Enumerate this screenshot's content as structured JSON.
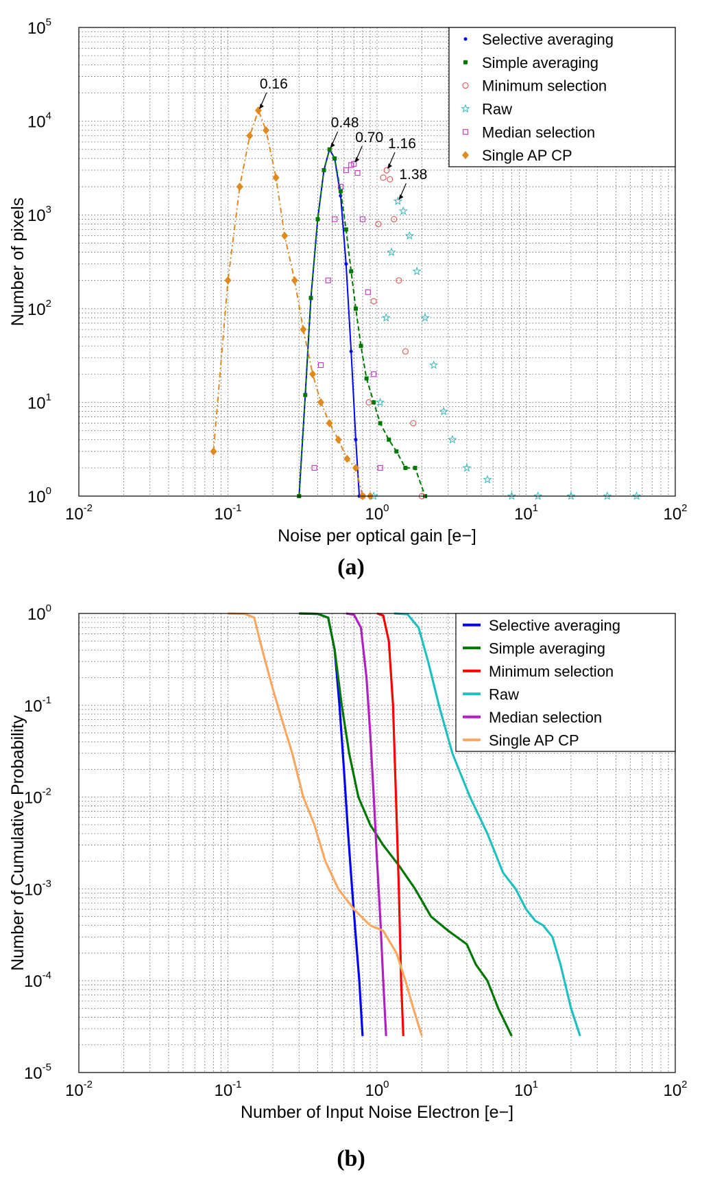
{
  "panel_labels": {
    "a": "(a)",
    "b": "(b)"
  },
  "chart_data": [
    {
      "type": "line",
      "panel": "(a)",
      "xlabel": "Noise per optical gain [e−]",
      "ylabel": "Number of pixels",
      "xscale": "log",
      "yscale": "log",
      "xlim": [
        0.01,
        100
      ],
      "ylim": [
        1,
        100000
      ],
      "grid": true,
      "legend_position": "top-right",
      "x_ticks": [
        {
          "base": "10",
          "exp": "-2"
        },
        {
          "base": "10",
          "exp": "-1"
        },
        {
          "base": "10",
          "exp": "0"
        },
        {
          "base": "10",
          "exp": "1"
        },
        {
          "base": "10",
          "exp": "2"
        }
      ],
      "y_ticks": [
        {
          "base": "10",
          "exp": "0"
        },
        {
          "base": "10",
          "exp": "1"
        },
        {
          "base": "10",
          "exp": "2"
        },
        {
          "base": "10",
          "exp": "3"
        },
        {
          "base": "10",
          "exp": "4"
        },
        {
          "base": "10",
          "exp": "5"
        }
      ],
      "series": [
        {
          "name": "Selective averaging",
          "color": "#0000ff",
          "marker": "dot",
          "line": "solid",
          "x": [
            0.3,
            0.33,
            0.36,
            0.4,
            0.44,
            0.48,
            0.52,
            0.57,
            0.62,
            0.67,
            0.72,
            0.76
          ],
          "y": [
            1,
            12,
            130,
            900,
            3000,
            5000,
            4000,
            1600,
            300,
            35,
            4,
            1
          ]
        },
        {
          "name": "Simple averaging",
          "color": "#007700",
          "marker": "square",
          "line": "dashed",
          "x": [
            0.3,
            0.33,
            0.36,
            0.4,
            0.44,
            0.48,
            0.52,
            0.57,
            0.62,
            0.67,
            0.72,
            0.78,
            0.85,
            0.95,
            1.05,
            1.2,
            1.35,
            1.55,
            1.8,
            2.1
          ],
          "y": [
            1,
            12,
            130,
            900,
            3000,
            5000,
            4000,
            1800,
            700,
            250,
            100,
            40,
            18,
            10,
            6,
            4,
            3,
            2,
            2,
            1
          ]
        },
        {
          "name": "Minimum selection",
          "color": "#e06060",
          "marker": "circle",
          "line": "none",
          "x": [
            0.8,
            0.88,
            0.95,
            1.02,
            1.1,
            1.16,
            1.22,
            1.3,
            1.4,
            1.55,
            1.75,
            2.0
          ],
          "y": [
            1,
            10,
            120,
            800,
            2500,
            3000,
            2400,
            900,
            200,
            35,
            6,
            1
          ]
        },
        {
          "name": "Raw",
          "color": "#30b8b8",
          "marker": "star",
          "line": "none",
          "x": [
            0.95,
            1.05,
            1.15,
            1.25,
            1.38,
            1.5,
            1.65,
            1.85,
            2.1,
            2.4,
            2.8,
            3.2,
            4.0,
            5.5,
            8.0,
            12.0,
            20.0,
            35.0,
            55.0
          ],
          "y": [
            1,
            10,
            80,
            400,
            1400,
            1100,
            600,
            250,
            80,
            25,
            8,
            4,
            2,
            1.5,
            1,
            1,
            1,
            1,
            1
          ]
        },
        {
          "name": "Median selection",
          "color": "#c040c0",
          "marker": "square-open",
          "line": "none",
          "x": [
            0.38,
            0.42,
            0.47,
            0.52,
            0.57,
            0.62,
            0.67,
            0.7,
            0.74,
            0.8,
            0.87,
            0.95,
            1.05
          ],
          "y": [
            2,
            25,
            200,
            900,
            2000,
            3000,
            3400,
            3500,
            2800,
            900,
            150,
            20,
            2
          ]
        },
        {
          "name": "Single AP CP",
          "color": "#e08a1e",
          "marker": "diamond",
          "line": "dashdot",
          "x": [
            0.08,
            0.1,
            0.12,
            0.14,
            0.16,
            0.18,
            0.21,
            0.24,
            0.28,
            0.32,
            0.37,
            0.42,
            0.48,
            0.55,
            0.63,
            0.72,
            0.8,
            0.9
          ],
          "y": [
            3,
            200,
            2000,
            7000,
            13000,
            8000,
            2500,
            600,
            200,
            60,
            20,
            10,
            6,
            4,
            2.5,
            2,
            1,
            1
          ]
        }
      ],
      "annotations": [
        {
          "text": "0.16",
          "x": 0.16,
          "y": 13000
        },
        {
          "text": "0.48",
          "x": 0.48,
          "y": 5000
        },
        {
          "text": "0.70",
          "x": 0.7,
          "y": 3500
        },
        {
          "text": "1.16",
          "x": 1.16,
          "y": 3000
        },
        {
          "text": "1.38",
          "x": 1.38,
          "y": 1400
        }
      ]
    },
    {
      "type": "line",
      "panel": "(b)",
      "xlabel": "Number of Input Noise Electron [e−]",
      "ylabel": "Number of Cumulative Probability",
      "xscale": "log",
      "yscale": "log",
      "xlim": [
        0.01,
        100
      ],
      "ylim": [
        1e-05,
        1
      ],
      "grid": true,
      "legend_position": "top-right",
      "x_ticks": [
        {
          "base": "10",
          "exp": "-2"
        },
        {
          "base": "10",
          "exp": "-1"
        },
        {
          "base": "10",
          "exp": "0"
        },
        {
          "base": "10",
          "exp": "1"
        },
        {
          "base": "10",
          "exp": "2"
        }
      ],
      "y_ticks": [
        {
          "base": "10",
          "exp": "-5"
        },
        {
          "base": "10",
          "exp": "-4"
        },
        {
          "base": "10",
          "exp": "-3"
        },
        {
          "base": "10",
          "exp": "-2"
        },
        {
          "base": "10",
          "exp": "-1"
        },
        {
          "base": "10",
          "exp": "0"
        }
      ],
      "series": [
        {
          "name": "Selective averaging",
          "color": "#0000ff",
          "x": [
            0.3,
            0.4,
            0.47,
            0.52,
            0.56,
            0.6,
            0.64,
            0.68,
            0.72,
            0.76,
            0.8
          ],
          "y": [
            1,
            0.99,
            0.9,
            0.4,
            0.1,
            0.02,
            0.004,
            0.001,
            0.0003,
            0.0001,
            2.5e-05
          ]
        },
        {
          "name": "Simple averaging",
          "color": "#007700",
          "x": [
            0.3,
            0.4,
            0.47,
            0.52,
            0.58,
            0.65,
            0.75,
            0.9,
            1.1,
            1.4,
            1.8,
            2.3,
            3.0,
            4.0,
            4.6,
            5.5,
            6.5,
            8.0
          ],
          "y": [
            1,
            0.99,
            0.9,
            0.4,
            0.1,
            0.03,
            0.01,
            0.005,
            0.003,
            0.0018,
            0.001,
            0.0005,
            0.00035,
            0.00025,
            0.00015,
            0.0001,
            5e-05,
            2.5e-05
          ]
        },
        {
          "name": "Minimum selection",
          "color": "#ff0000",
          "x": [
            1.0,
            1.1,
            1.2,
            1.28,
            1.34,
            1.4,
            1.45,
            1.5
          ],
          "y": [
            1,
            0.95,
            0.5,
            0.1,
            0.01,
            0.001,
            0.0001,
            2.5e-05
          ]
        },
        {
          "name": "Raw",
          "color": "#20c0c0",
          "x": [
            1.3,
            1.6,
            1.9,
            2.2,
            2.6,
            3.2,
            4.2,
            5.5,
            7.0,
            8.5,
            10.0,
            11.5,
            13.0,
            15.0,
            17.0,
            20.0,
            23.0
          ],
          "y": [
            1,
            0.98,
            0.7,
            0.3,
            0.1,
            0.03,
            0.01,
            0.004,
            0.0015,
            0.001,
            0.0006,
            0.00045,
            0.0004,
            0.0003,
            0.00015,
            5e-05,
            2.5e-05
          ]
        },
        {
          "name": "Median selection",
          "color": "#b020c0",
          "x": [
            0.62,
            0.7,
            0.78,
            0.85,
            0.9,
            0.95,
            1.0,
            1.05,
            1.1,
            1.15
          ],
          "y": [
            1,
            0.97,
            0.7,
            0.2,
            0.05,
            0.01,
            0.002,
            0.0005,
            0.0001,
            2.5e-05
          ]
        },
        {
          "name": "Single AP CP",
          "color": "#f8a860",
          "x": [
            0.1,
            0.13,
            0.15,
            0.17,
            0.2,
            0.23,
            0.27,
            0.32,
            0.38,
            0.45,
            0.55,
            0.7,
            0.9,
            1.1,
            1.35,
            1.55,
            1.75,
            2.0
          ],
          "y": [
            1,
            0.99,
            0.9,
            0.4,
            0.15,
            0.07,
            0.03,
            0.01,
            0.005,
            0.002,
            0.001,
            0.0006,
            0.0004,
            0.00035,
            0.0002,
            0.0001,
            5e-05,
            2.5e-05
          ]
        }
      ]
    }
  ]
}
